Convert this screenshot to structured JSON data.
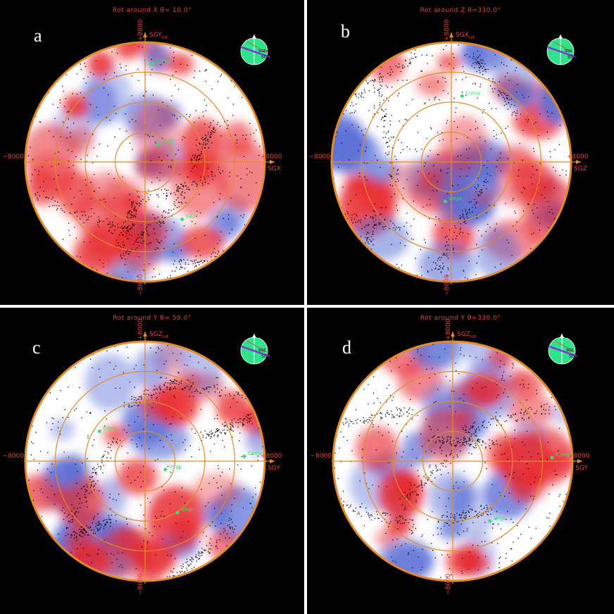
{
  "panels": [
    {
      "id": "a",
      "letter": "a",
      "title": "Rot around X  θ= 10.0°",
      "axis_h": "SGX",
      "axis_v": "SGY",
      "axis_v_sub": "rot",
      "tick_left": "−8000",
      "tick_right": "+8000",
      "tick_top": "+8000",
      "tick_bottom": "−8000",
      "inset_labels": [
        "SGY",
        "SGZrot",
        "SGY"
      ],
      "markers": [
        {
          "label": "Coma",
          "x": 0.06,
          "y": 0.82
        },
        {
          "label": "Virgo",
          "x": 0.11,
          "y": 0.15
        },
        {
          "label": "GA?",
          "x": 0.31,
          "y": -0.48
        }
      ],
      "seed": 11
    },
    {
      "id": "b",
      "letter": "b",
      "title": "Rot around Z  θ=330.0°",
      "axis_h": "SGZ",
      "axis_v": "SGX",
      "axis_v_sub": "rot",
      "tick_left": "−8000",
      "tick_right": "+8000",
      "tick_top": "+8000",
      "tick_bottom": "−8000",
      "inset_labels": [
        "SGY",
        "SGX",
        "SGX"
      ],
      "markers": [
        {
          "label": "Coma",
          "x": 0.09,
          "y": 0.55
        },
        {
          "label": "Virgo",
          "x": -0.05,
          "y": -0.33
        }
      ],
      "seed": 23
    },
    {
      "id": "c",
      "letter": "c",
      "title": "Rot around Y  θ= 50.0°",
      "axis_h": "SGY",
      "axis_v": "SGZ",
      "axis_v_sub": "rot",
      "tick_left": "−8000",
      "tick_right": "+8000",
      "tick_top": "+8000",
      "tick_bottom": "−8000",
      "inset_labels": [
        "SGX",
        "SGZ",
        "SGX"
      ],
      "markers": [
        {
          "label": "Coma",
          "x": -0.38,
          "y": 0.25
        },
        {
          "label": "Coma",
          "x": 0.83,
          "y": 0.04
        },
        {
          "label": "Virgo",
          "x": 0.17,
          "y": -0.07
        },
        {
          "label": "Virgo",
          "x": 0.27,
          "y": -0.43
        }
      ],
      "seed": 37
    },
    {
      "id": "d",
      "letter": "d",
      "title": "Rot around Y  θ=330.0°",
      "axis_h": "SGY",
      "axis_v": "SGZ",
      "axis_v_sub": "rot",
      "tick_left": "−8000",
      "tick_right": "+8000",
      "tick_top": "+8000",
      "tick_bottom": "−8000",
      "inset_labels": [
        "SGX",
        "SGZ",
        "SGX"
      ],
      "markers": [
        {
          "label": "Coma",
          "x": 0.83,
          "y": 0.03
        },
        {
          "label": "Virgo",
          "x": 0.31,
          "y": -0.5
        }
      ],
      "seed": 53
    }
  ],
  "colors": {
    "ring": "#e48a2a",
    "axis_text": "#e0443a",
    "red_blob": "#e8282c",
    "blue_blob": "#5b6fd6",
    "marker": "#33e36a",
    "inset_disc": "#2fe38a"
  }
}
